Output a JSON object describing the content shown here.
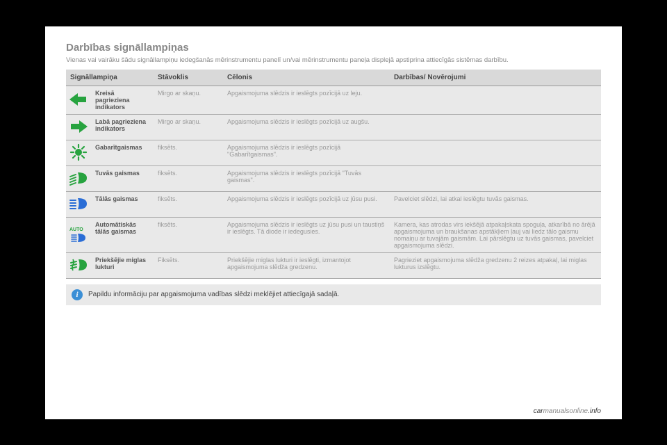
{
  "page": {
    "title": "Darbības signāllampiņas",
    "subtitle": "Vienas vai vairāku šādu signāllampiņu iedegšanās mērinstrumentu panelī un/vai mērinstrumentu paneļa displejā apstiprina attiecīgās sistēmas darbību.",
    "info_note": "Papildu informāciju par apgaismojuma vadības slēdzi meklējiet attiecīgajā sadaļā.",
    "footer_site": "carmanualsonline.info"
  },
  "table": {
    "headers": {
      "lamp": "Signāllampiņa",
      "status": "Stāvoklis",
      "cause": "Cēlonis",
      "action": "Darbības/ Novērojumi"
    },
    "rows": [
      {
        "icon": "left-turn",
        "name": "Kreisā pagrieziena indikators",
        "status": "Mirgo ar skaņu.",
        "cause": "Apgaismojuma slēdzis ir ieslēgts pozīcijā uz leju.",
        "action": ""
      },
      {
        "icon": "right-turn",
        "name": "Labā pagrieziena indikators",
        "status": "Mirgo ar skaņu.",
        "cause": "Apgaismojuma slēdzis ir ieslēgts pozīcijā uz augšu.",
        "action": ""
      },
      {
        "icon": "sidelights",
        "name": "Gabarītgaismas",
        "status": "fiksēts.",
        "cause": "Apgaismojuma slēdzis ir ieslēgts pozīcijā \"Gabarītgaismas\".",
        "action": ""
      },
      {
        "icon": "low-beam",
        "name": "Tuvās gaismas",
        "status": "fiksēts.",
        "cause": "Apgaismojuma slēdzis ir ieslēgts pozīcijā \"Tuvās gaismas\".",
        "action": ""
      },
      {
        "icon": "high-beam",
        "name": "Tālās gaismas",
        "status": "fiksēts.",
        "cause": "Apgaismojuma slēdzis ir ieslēgts pozīcijā uz jūsu pusi.",
        "action": "Pavelciet slēdzi, lai atkal ieslēgtu tuvās gaismas."
      },
      {
        "icon": "auto-beam",
        "name": "Automātiskās tālās gaismas",
        "status": "fiksēts.",
        "cause": "Apgaismojuma slēdzis ir ieslēgts uz jūsu pusi un taustiņš ir ieslēgts. Tā diode ir iedegusies.",
        "action": "Kamera, kas atrodas virs iekšējā atpakaļskata spoguļa, atkarībā no ārējā apgaismojuma un braukšanas apstākļiem ļauj vai liedz tālo gaismu nomaiņu ar tuvajām gaismām. Lai pārslēgtu uz tuvās gaismas, pavelciet apgaismojuma slēdzi."
      },
      {
        "icon": "front-fog",
        "name": "Priekšējie miglas lukturi",
        "status": "Fiksēts.",
        "cause": "Priekšējie miglas lukturi ir ieslēgti, izmantojot apgaismojuma slēdža gredzenu.",
        "action": "Pagrieziet apgaismojuma slēdža gredzenu 2 reizes atpakaļ, lai miglas lukturus izslēgtu."
      }
    ]
  },
  "colors": {
    "turn_green": "#27a33f",
    "sidelight_green": "#27a33f",
    "lowbeam_green": "#27a33f",
    "highbeam_blue": "#2a6dd6",
    "frontfog_green": "#27a33f"
  }
}
